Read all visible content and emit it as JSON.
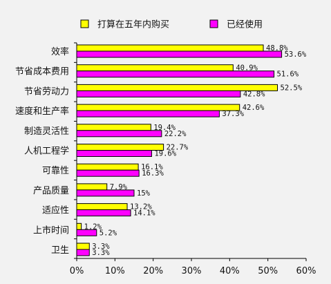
{
  "chart_data": {
    "type": "bar",
    "orientation": "horizontal",
    "categories": [
      "效率",
      "节省成本费用",
      "节省劳动力",
      "速度和生产率",
      "制造灵活性",
      "人机工程学",
      "可靠性",
      "产品质量",
      "适应性",
      "上市时间",
      "卫生"
    ],
    "series": [
      {
        "name": "打算在五年内购买",
        "color": "#ffff00",
        "values": [
          48.8,
          40.9,
          52.5,
          42.6,
          19.4,
          22.7,
          16.1,
          7.9,
          13.2,
          1.2,
          3.3
        ],
        "labels": [
          "48.8%",
          "40.9%",
          "52.5%",
          "42.6%",
          "19.4%",
          "22.7%",
          "16.1%",
          "7.9%",
          "13.2%",
          "1.2%",
          "3.3%"
        ]
      },
      {
        "name": "已经使用",
        "color": "#ff00ff",
        "values": [
          53.6,
          51.6,
          42.8,
          37.3,
          22.2,
          19.6,
          16.3,
          15,
          14.1,
          5.2,
          3.3
        ],
        "labels": [
          "53.6%",
          "51.6%",
          "42.8%",
          "37.3%",
          "22.2%",
          "19.6%",
          "16.3%",
          "15%",
          "14.1%",
          "5.2%",
          "3.3%"
        ]
      }
    ],
    "xlim": [
      0,
      60
    ],
    "xticks": [
      "0%",
      "10%",
      "20%",
      "30%",
      "40%",
      "50%",
      "60%"
    ],
    "legend_position": "top",
    "grid": false
  }
}
